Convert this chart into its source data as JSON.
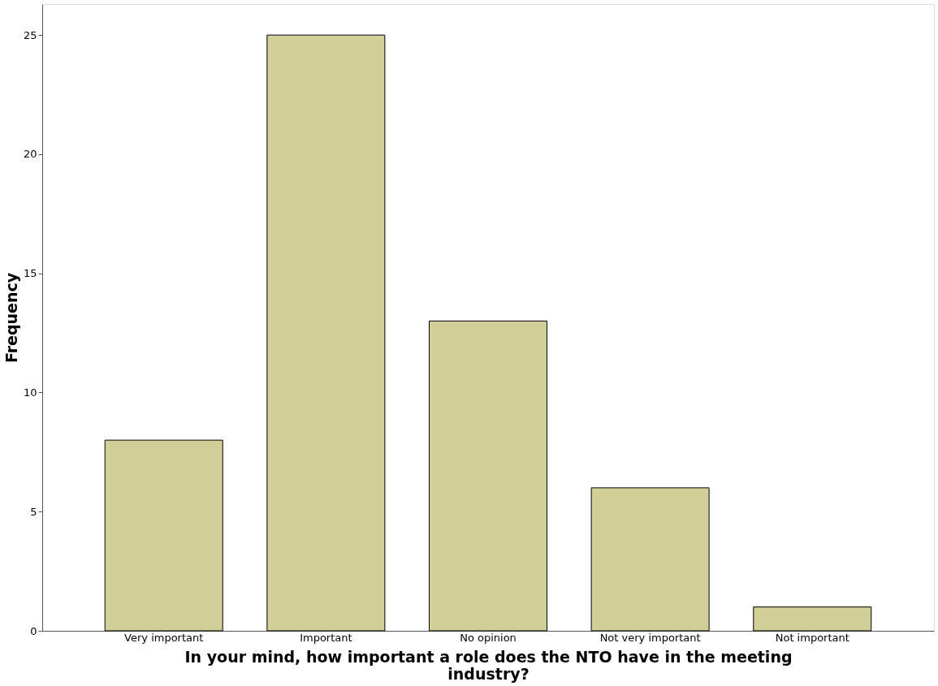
{
  "chart_data": {
    "type": "bar",
    "categories": [
      "Very important",
      "Important",
      "No opinion",
      "Not very important",
      "Not important"
    ],
    "values": [
      8,
      25,
      13,
      6,
      1
    ],
    "color": "#d3cf98",
    "xlabel": "In your mind, how important a role does the NTO have in the meeting industry?",
    "ylabel": "Frequency",
    "ylim": [
      0,
      26.3
    ],
    "yticks": [
      0,
      5,
      10,
      15,
      20,
      25
    ],
    "grid": false
  }
}
